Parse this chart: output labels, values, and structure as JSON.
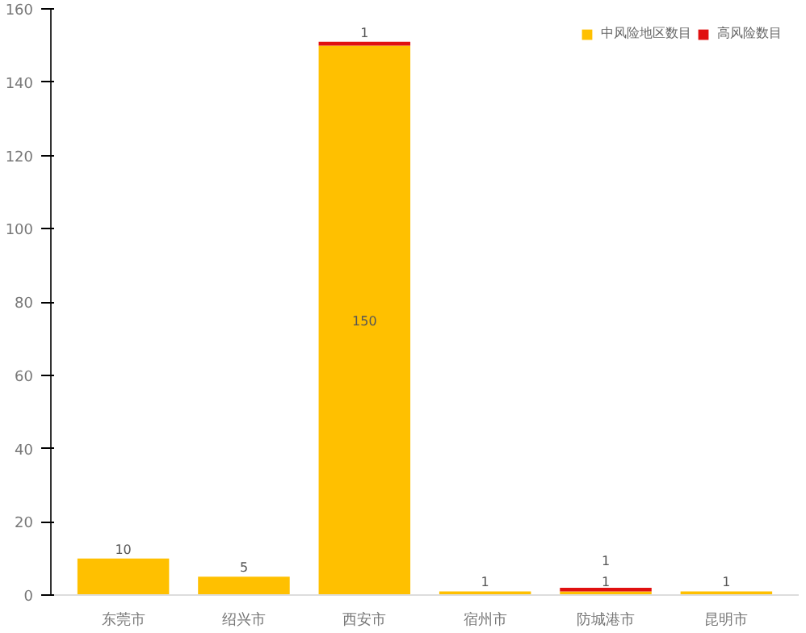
{
  "chart_data": {
    "type": "bar",
    "stacked": true,
    "categories": [
      "东莞市",
      "绍兴市",
      "西安市",
      "宿州市",
      "防城港市",
      "昆明市"
    ],
    "series": [
      {
        "name": "中风险地区数目",
        "color": "#ffc000",
        "values": [
          10,
          5,
          150,
          1,
          1,
          1
        ],
        "value_labels": [
          "10",
          "5",
          "150",
          "1",
          "1",
          "1"
        ]
      },
      {
        "name": "高风险数目",
        "color": "#e01010",
        "values": [
          0,
          0,
          1,
          0,
          1,
          0
        ],
        "value_labels": [
          null,
          null,
          "1",
          null,
          "1",
          null
        ]
      }
    ],
    "ylim": [
      0,
      160
    ],
    "yticks": [
      0,
      20,
      40,
      60,
      80,
      100,
      120,
      140,
      160
    ],
    "grid": false,
    "legend": "top right"
  }
}
